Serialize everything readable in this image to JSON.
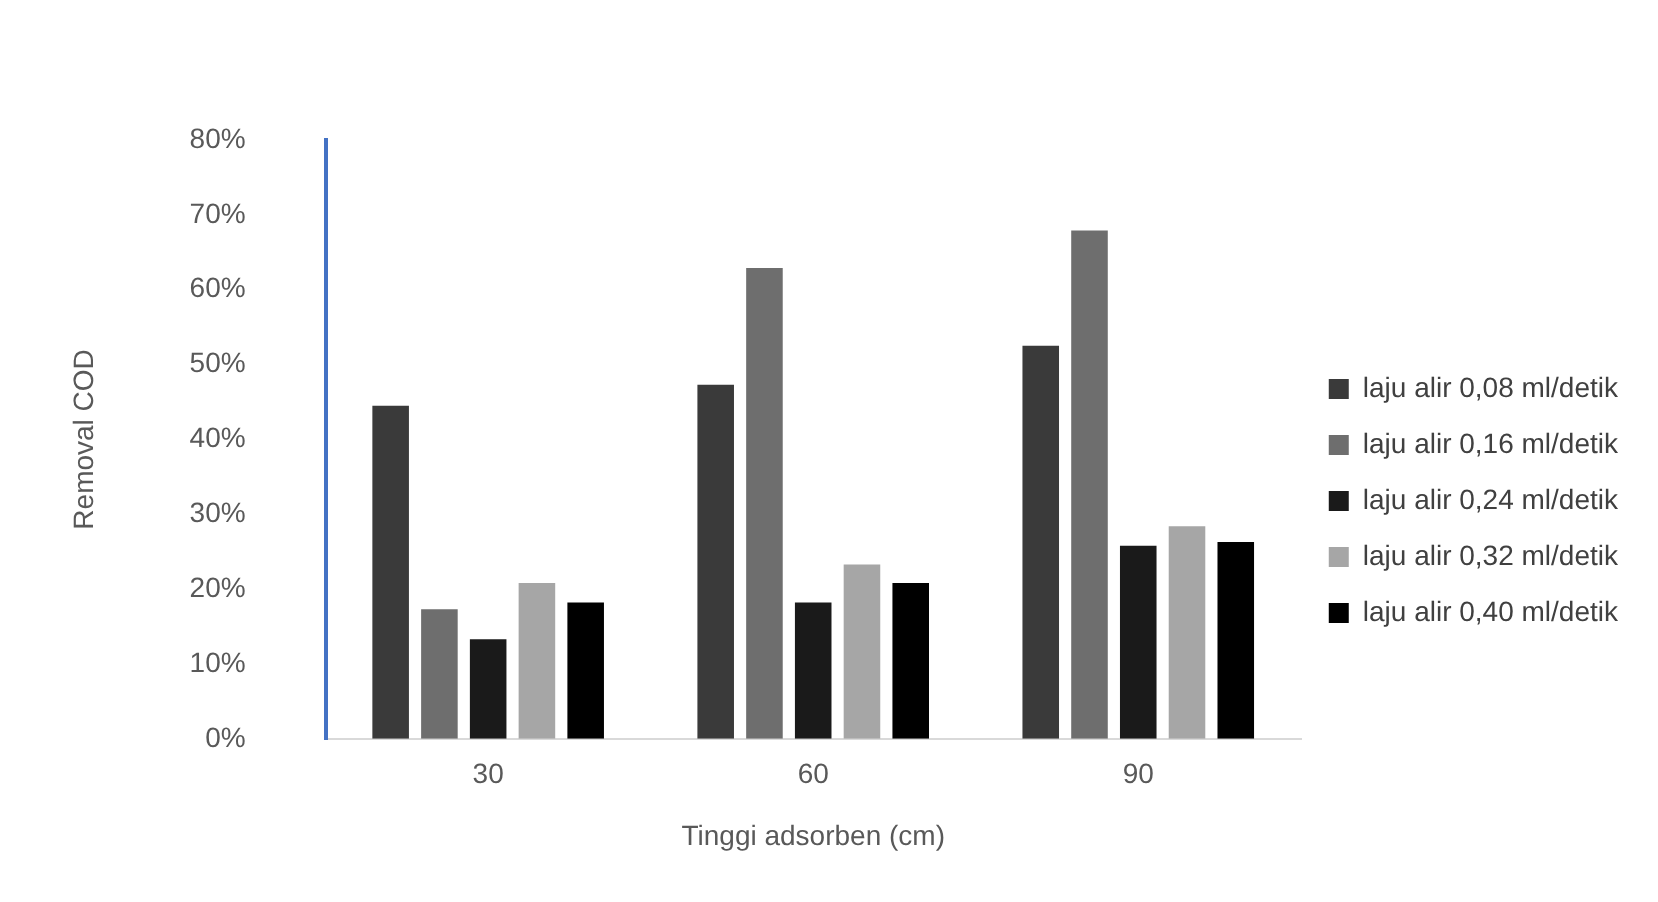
{
  "chart_data": {
    "type": "bar",
    "xlabel": "Tinggi adsorben (cm)",
    "ylabel": "Removal COD",
    "categories": [
      "30",
      "60",
      "90"
    ],
    "series": [
      {
        "name": "laju alir 0,08 ml/detik",
        "color": "#3a3a3a",
        "values": [
          44.5,
          47.3,
          52.5
        ]
      },
      {
        "name": "laju alir 0,16 ml/detik",
        "color": "#6e6e6e",
        "values": [
          17.3,
          62.9,
          67.9
        ]
      },
      {
        "name": "laju alir 0,24 ml/detik",
        "color": "#1a1a1a",
        "values": [
          13.3,
          18.2,
          25.8
        ]
      },
      {
        "name": "laju alir 0,32 ml/detik",
        "color": "#a6a6a6",
        "values": [
          20.8,
          23.3,
          28.4
        ]
      },
      {
        "name": "laju alir 0,40 ml/detik",
        "color": "#000000",
        "values": [
          18.2,
          20.8,
          26.3
        ]
      }
    ],
    "ylim": [
      0,
      80
    ],
    "yticks": [
      {
        "value": 0,
        "label": "0%"
      },
      {
        "value": 10,
        "label": "10%"
      },
      {
        "value": 20,
        "label": "20%"
      },
      {
        "value": 30,
        "label": "30%"
      },
      {
        "value": 40,
        "label": "40%"
      },
      {
        "value": 50,
        "label": "50%"
      },
      {
        "value": 60,
        "label": "60%"
      },
      {
        "value": 70,
        "label": "70%"
      },
      {
        "value": 80,
        "label": "80%"
      }
    ],
    "grid": false,
    "legend": "right"
  }
}
